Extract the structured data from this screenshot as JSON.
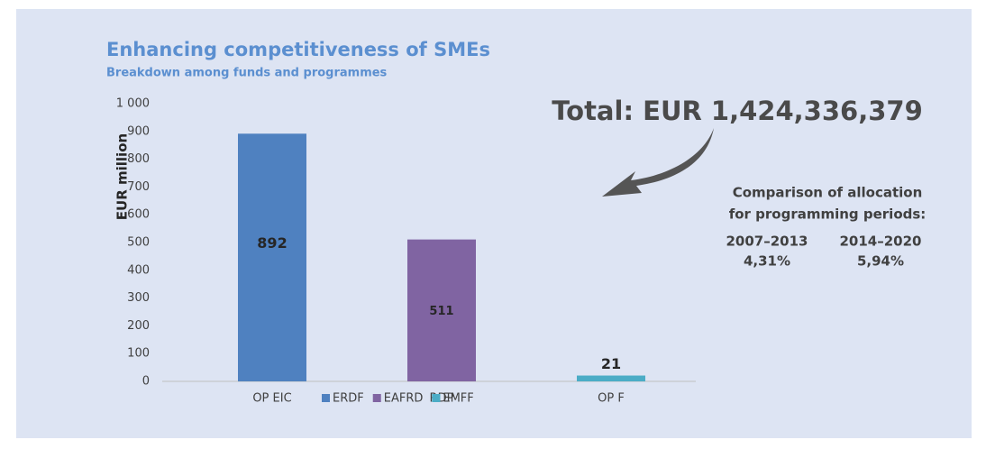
{
  "chart_data": {
    "type": "bar",
    "title": "Enhancing competitiveness of SMEs",
    "subtitle": "Breakdown among funds and programmes",
    "y_label": "EUR million",
    "categories": [
      "OP EIC",
      "RDP",
      "OP F"
    ],
    "series": [
      {
        "name": "ERDF",
        "color": "#4f81c0",
        "values": [
          892,
          null,
          null
        ]
      },
      {
        "name": "EAFRD",
        "color": "#8064a2",
        "values": [
          null,
          511,
          null
        ]
      },
      {
        "name": "EMFF",
        "color": "#4bacc6",
        "values": [
          null,
          null,
          21
        ]
      }
    ],
    "ylim": [
      0,
      1000
    ],
    "yticks": [
      0,
      100,
      200,
      300,
      400,
      500,
      600,
      700,
      800,
      900,
      {
        "value": 1000,
        "label": "1 000"
      }
    ],
    "grid": false,
    "legend": "bottom",
    "annotations": {
      "total": "Total: EUR 1,424,336,379",
      "comparison_line1": "Comparison of allocation",
      "comparison_line2": "for programming periods:",
      "period1": "2007–2013",
      "period1_value": "4,31%",
      "period2": "2014–2020",
      "period2_value": "5,94%"
    }
  }
}
